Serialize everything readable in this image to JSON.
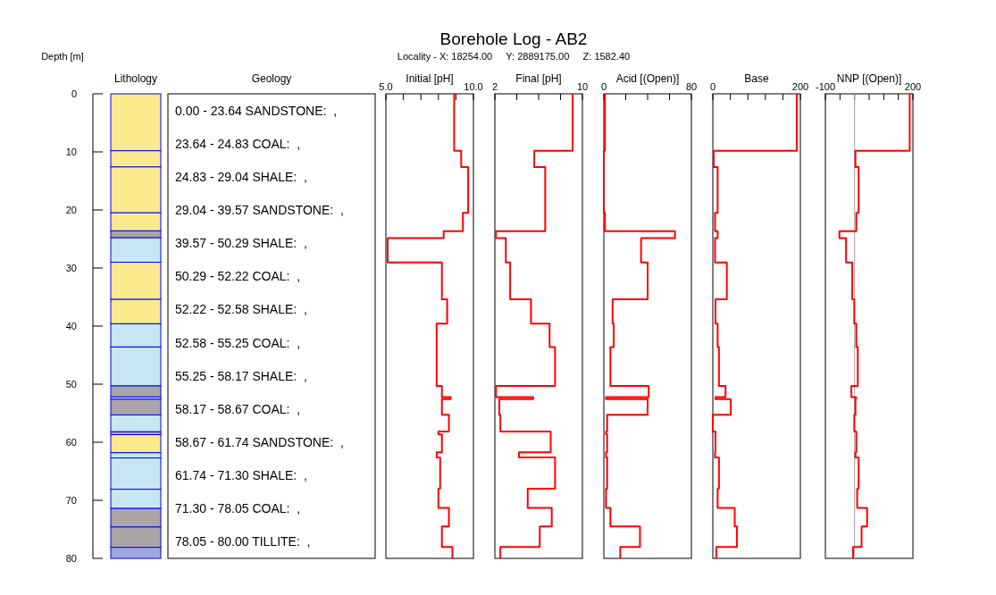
{
  "chart_data": [
    {
      "type": "bar",
      "ylabel": "Depth [m]",
      "xlabel": "Lithology",
      "categories": [
        null
      ],
      "stacked": true,
      "ylim": [
        80,
        0
      ],
      "yticks": [
        0,
        10,
        20,
        30,
        40,
        50,
        60,
        70,
        80
      ],
      "tick_labels": "y",
      "series": [
        {
          "color": "#fbe98e",
          "values": [
            9.8
          ]
        },
        {
          "color": "#fbe98e",
          "values": [
            2.8
          ]
        },
        {
          "color": "#fbe98e",
          "values": [
            7.9
          ]
        },
        {
          "color": "#fbe98e",
          "values": [
            3.1
          ]
        },
        {
          "color": "#aba5a5",
          "values": [
            1.2
          ]
        },
        {
          "color": "#c6e7f3",
          "values": [
            4.2
          ]
        },
        {
          "color": "#fbe98e",
          "values": [
            6.4
          ]
        },
        {
          "color": "#fbe98e",
          "values": [
            4.2
          ]
        },
        {
          "color": "#c6e7f3",
          "values": [
            4.0
          ]
        },
        {
          "color": "#c6e7f3",
          "values": [
            6.7
          ]
        },
        {
          "color": "#aba5a5",
          "values": [
            1.9
          ]
        },
        {
          "color": "#c6e7f3",
          "values": [
            0.4
          ]
        },
        {
          "color": "#aba5a5",
          "values": [
            2.7
          ]
        },
        {
          "color": "#c6e7f3",
          "values": [
            2.9
          ]
        },
        {
          "color": "#aba5a5",
          "values": [
            0.5
          ]
        },
        {
          "color": "#fbe98e",
          "values": [
            3.1
          ]
        },
        {
          "color": "#c6e7f3",
          "values": [
            0.9
          ]
        },
        {
          "color": "#c6e7f3",
          "values": [
            5.4
          ]
        },
        {
          "color": "#c6e7f3",
          "values": [
            3.3
          ]
        },
        {
          "color": "#aba5a5",
          "values": [
            3.2
          ]
        },
        {
          "color": "#aba5a5",
          "values": [
            3.5
          ]
        },
        {
          "color": "#9fa6e0",
          "values": [
            1.9
          ]
        }
      ],
      "annotations": [
        "Geology",
        "0.00 - 23.64 SANDSTONE:  ,",
        "23.64 - 24.83 COAL:  ,",
        "24.83 - 29.04 SHALE:  ,",
        "29.04 - 39.57 SANDSTONE:  ,",
        "39.57 - 50.29 SHALE:  ,",
        "50.29 - 52.22 COAL:  ,",
        "52.22 - 52.58 SHALE:  ,",
        "52.58 - 55.25 COAL:  ,",
        "55.25 - 58.17 SHALE:  ,",
        "58.17 - 58.67 COAL:  ,",
        "58.67 - 61.74 SANDSTONE:  ,",
        "61.74 - 71.30 SHALE:  ,",
        "71.30 - 78.05 COAL:  ,",
        "78.05 - 80.00 TILLITE:  ,"
      ]
    },
    {
      "type": "step",
      "orientation": "horizontal",
      "xlabel": "Initial [pH]",
      "xlim": [
        5,
        10
      ],
      "xticks": [
        {
          "value": 5,
          "label": "5.0"
        },
        {
          "value": 6,
          "label": null
        },
        {
          "value": 7,
          "label": null
        },
        {
          "value": 8,
          "label": null
        },
        {
          "value": 9,
          "label": null
        },
        {
          "value": 10,
          "label": "10.0"
        }
      ],
      "ylim": [
        80,
        0
      ],
      "tick_labels": "x",
      "x": [
        0,
        9.8,
        12.6,
        20.5,
        23.64,
        24.83,
        29.04,
        35.4,
        39.57,
        43.6,
        50.29,
        52.22,
        52.58,
        55.25,
        58.17,
        58.67,
        61.74,
        62.6,
        68.0,
        71.3,
        74.5,
        78.05,
        80
      ],
      "series": [
        {
          "color": "#ff0000",
          "values": [
            8.9,
            9.3,
            9.7,
            9.4,
            8.3,
            5.1,
            8.2,
            8.5,
            7.9,
            7.9,
            8.2,
            8.7,
            8.2,
            8.6,
            8.0,
            8.2,
            7.9,
            8.1,
            8.0,
            8.6,
            8.2,
            8.8,
            8.8
          ]
        }
      ]
    },
    {
      "type": "step",
      "orientation": "horizontal",
      "title": "Borehole Log - AB2",
      "subtitle": "Locality - X: 18254.00     Y: 2889175.00     Z: 1582.40",
      "xlabel": "Final [pH]",
      "xlim": [
        2,
        10
      ],
      "xticks": [
        2,
        {
          "value": 4,
          "label": null
        },
        {
          "value": 6,
          "label": null
        },
        {
          "value": 8,
          "label": null
        },
        10
      ],
      "ylim": [
        80,
        0
      ],
      "tick_labels": "x",
      "x": [
        0,
        9.8,
        12.6,
        20.5,
        23.64,
        24.83,
        29.04,
        35.4,
        39.57,
        43.6,
        50.29,
        52.22,
        52.58,
        55.25,
        58.17,
        58.67,
        61.74,
        62.6,
        68.0,
        71.3,
        74.5,
        78.05,
        80
      ],
      "series": [
        {
          "color": "#ff0000",
          "values": [
            9.1,
            5.6,
            6.6,
            6.6,
            2.1,
            3.0,
            3.4,
            5.3,
            7.0,
            7.5,
            2.1,
            5.5,
            2.4,
            2.5,
            7.1,
            7.1,
            4.2,
            7.5,
            5.0,
            7.2,
            6.1,
            2.5,
            2.5
          ]
        }
      ]
    },
    {
      "type": "step",
      "orientation": "horizontal",
      "xlabel": "Acid [(Open)]",
      "xlim": [
        0,
        80
      ],
      "xticks": [
        0,
        {
          "value": 20,
          "label": null
        },
        {
          "value": 40,
          "label": null
        },
        {
          "value": 60,
          "label": null
        },
        80
      ],
      "ylim": [
        80,
        0
      ],
      "tick_labels": "x",
      "x": [
        0,
        9.8,
        12.6,
        20.5,
        23.64,
        24.83,
        29.04,
        35.4,
        39.57,
        43.6,
        50.29,
        52.22,
        52.58,
        55.25,
        58.17,
        58.67,
        61.74,
        62.6,
        68.0,
        71.3,
        74.5,
        78.05,
        80
      ],
      "series": [
        {
          "color": "#ff0000",
          "values": [
            1,
            0,
            0,
            1,
            65,
            34,
            40,
            8,
            9,
            6,
            41,
            2,
            40,
            3,
            2,
            3,
            2,
            3,
            2,
            6,
            33,
            15,
            15
          ]
        }
      ]
    },
    {
      "type": "step",
      "orientation": "horizontal",
      "xlabel": "Base",
      "xlim": [
        0,
        200
      ],
      "xticks": [
        0,
        {
          "value": 40,
          "label": null
        },
        {
          "value": 80,
          "label": null
        },
        {
          "value": 120,
          "label": null
        },
        {
          "value": 160,
          "label": null
        },
        200
      ],
      "ylim": [
        80,
        0
      ],
      "tick_labels": "x",
      "x": [
        0,
        9.8,
        12.6,
        20.5,
        23.64,
        24.83,
        29.04,
        35.4,
        39.57,
        43.6,
        50.29,
        52.22,
        52.58,
        55.25,
        58.17,
        58.67,
        61.74,
        62.6,
        68.0,
        71.3,
        74.5,
        78.05,
        80
      ],
      "series": [
        {
          "color": "#ff0000",
          "values": [
            192,
            2,
            11,
            5,
            11,
            5,
            32,
            6,
            11,
            14,
            29,
            6,
            41,
            0,
            6,
            6,
            5,
            14,
            11,
            50,
            55,
            8,
            8
          ]
        }
      ]
    },
    {
      "type": "step",
      "orientation": "horizontal",
      "xlabel": "NNP [(Open)]",
      "xlim": [
        -100,
        200
      ],
      "xticks": [
        -100,
        {
          "value": -50,
          "label": null
        },
        {
          "value": 0,
          "label": null
        },
        {
          "value": 50,
          "label": null
        },
        {
          "value": 100,
          "label": null
        },
        {
          "value": 150,
          "label": null
        },
        200
      ],
      "ylim": [
        80,
        0
      ],
      "tick_labels": "x",
      "ref_lines": [
        {
          "axis": "x",
          "value": 0,
          "color": "#a0a0a0"
        }
      ],
      "x": [
        0,
        9.8,
        12.6,
        20.5,
        23.64,
        24.83,
        29.04,
        35.4,
        39.57,
        43.6,
        50.29,
        52.22,
        52.58,
        55.25,
        58.17,
        58.67,
        61.74,
        62.6,
        68.0,
        71.3,
        74.5,
        78.05,
        80
      ],
      "series": [
        {
          "color": "#ff0000",
          "values": [
            189,
            3,
            14,
            6,
            -52,
            -29,
            -8,
            -1,
            6,
            11,
            -11,
            5,
            3,
            -1,
            6,
            6,
            3,
            14,
            9,
            43,
            24,
            -5,
            -5
          ]
        }
      ]
    }
  ]
}
